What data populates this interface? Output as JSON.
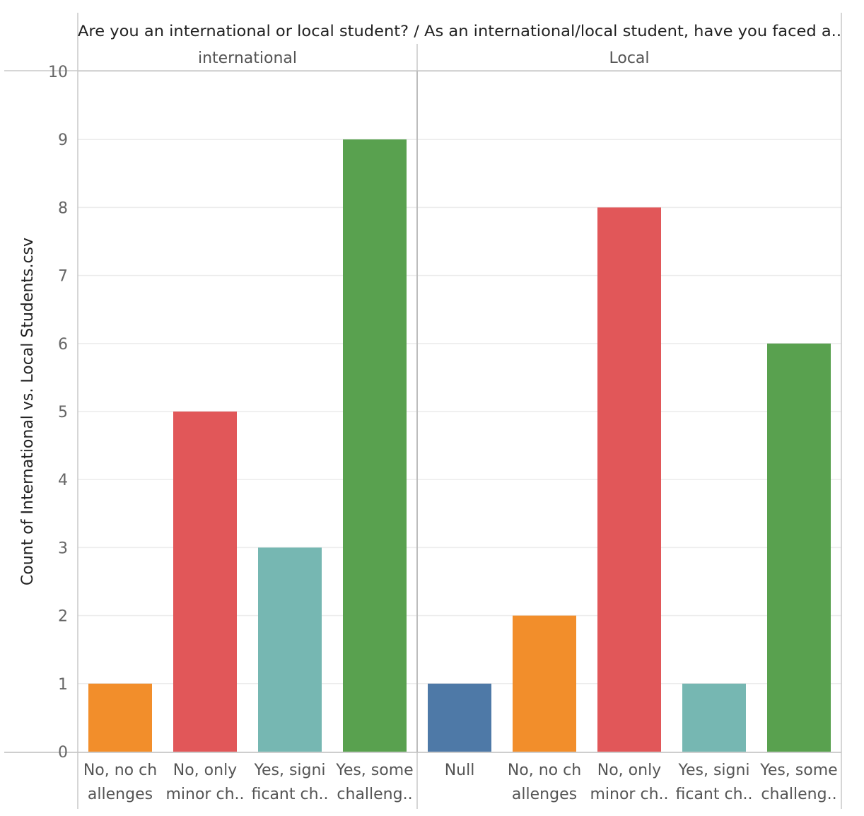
{
  "chart_data": {
    "type": "bar",
    "title": "Are you an international or local student?  /  As an international/local student, have you faced a..",
    "ylabel": "Count of International vs. Local Students.csv",
    "ylim": [
      0,
      10
    ],
    "yticks": [
      "0",
      "1",
      "2",
      "3",
      "4",
      "5",
      "6",
      "7",
      "8",
      "9",
      "10"
    ],
    "grid": true,
    "panels": [
      {
        "name": "international",
        "categories": [
          [
            "No, no ch",
            "allenges"
          ],
          [
            "No, only",
            "minor ch.."
          ],
          [
            "Yes, signi",
            "ficant ch.."
          ],
          [
            "Yes, some",
            "challeng.."
          ]
        ],
        "values": [
          1,
          5,
          3,
          9
        ],
        "colors": [
          "#f28e2b",
          "#e15759",
          "#76b7b2",
          "#59a14f"
        ]
      },
      {
        "name": "Local",
        "categories": [
          [
            "Null"
          ],
          [
            "No, no ch",
            "allenges"
          ],
          [
            "No, only",
            "minor ch.."
          ],
          [
            "Yes, signi",
            "ficant ch.."
          ],
          [
            "Yes, some",
            "challeng.."
          ]
        ],
        "values": [
          1,
          2,
          8,
          1,
          6
        ],
        "colors": [
          "#4e79a7",
          "#f28e2b",
          "#e15759",
          "#76b7b2",
          "#59a14f"
        ]
      }
    ]
  }
}
